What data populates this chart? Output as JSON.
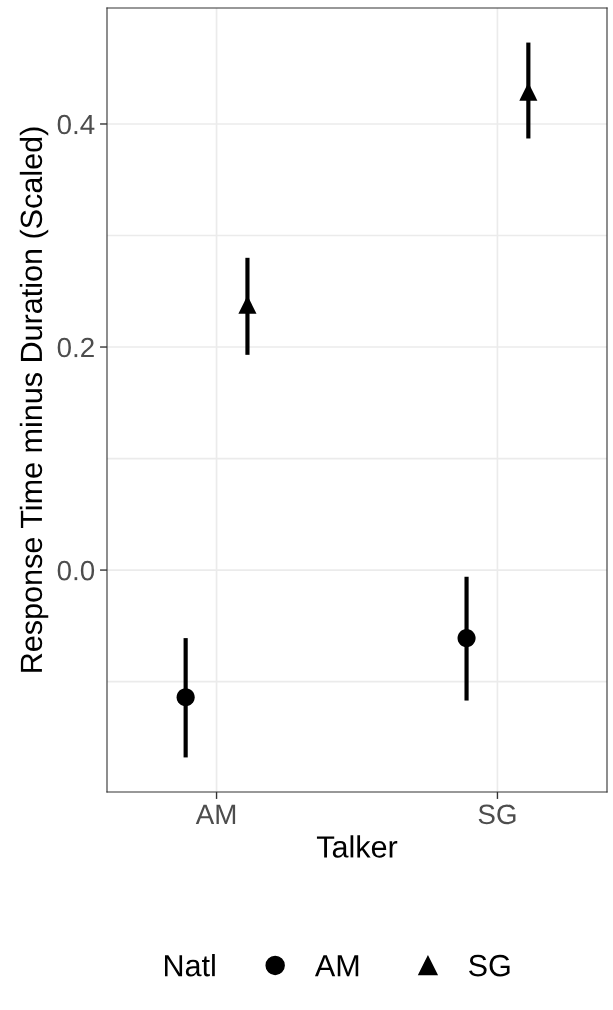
{
  "chart_data": {
    "type": "scatter",
    "xlabel": "Talker",
    "ylabel": "Response Time minus Duration (Scaled)",
    "legend_title": "Natl",
    "categories": [
      "AM",
      "SG"
    ],
    "series": [
      {
        "name": "AM",
        "color": "#000000",
        "marker": "circle",
        "values": [
          -0.114,
          -0.061
        ],
        "errors": [
          [
            -0.168,
            -0.061
          ],
          [
            -0.117,
            -0.006
          ]
        ]
      },
      {
        "name": "SG",
        "color": "#000000",
        "marker": "triangle",
        "values": [
          0.238,
          0.429
        ],
        "errors": [
          [
            0.193,
            0.28
          ],
          [
            0.387,
            0.473
          ]
        ]
      }
    ],
    "ylim": [
      -0.199,
      0.504
    ],
    "yticks": [
      {
        "value": -0.1,
        "label": null
      },
      {
        "value": 0.0,
        "label": "0.0"
      },
      {
        "value": 0.1,
        "label": null
      },
      {
        "value": 0.2,
        "label": "0.2"
      },
      {
        "value": 0.3,
        "label": null
      },
      {
        "value": 0.4,
        "label": "0.4"
      }
    ],
    "grid": true,
    "legend": "bottom"
  }
}
